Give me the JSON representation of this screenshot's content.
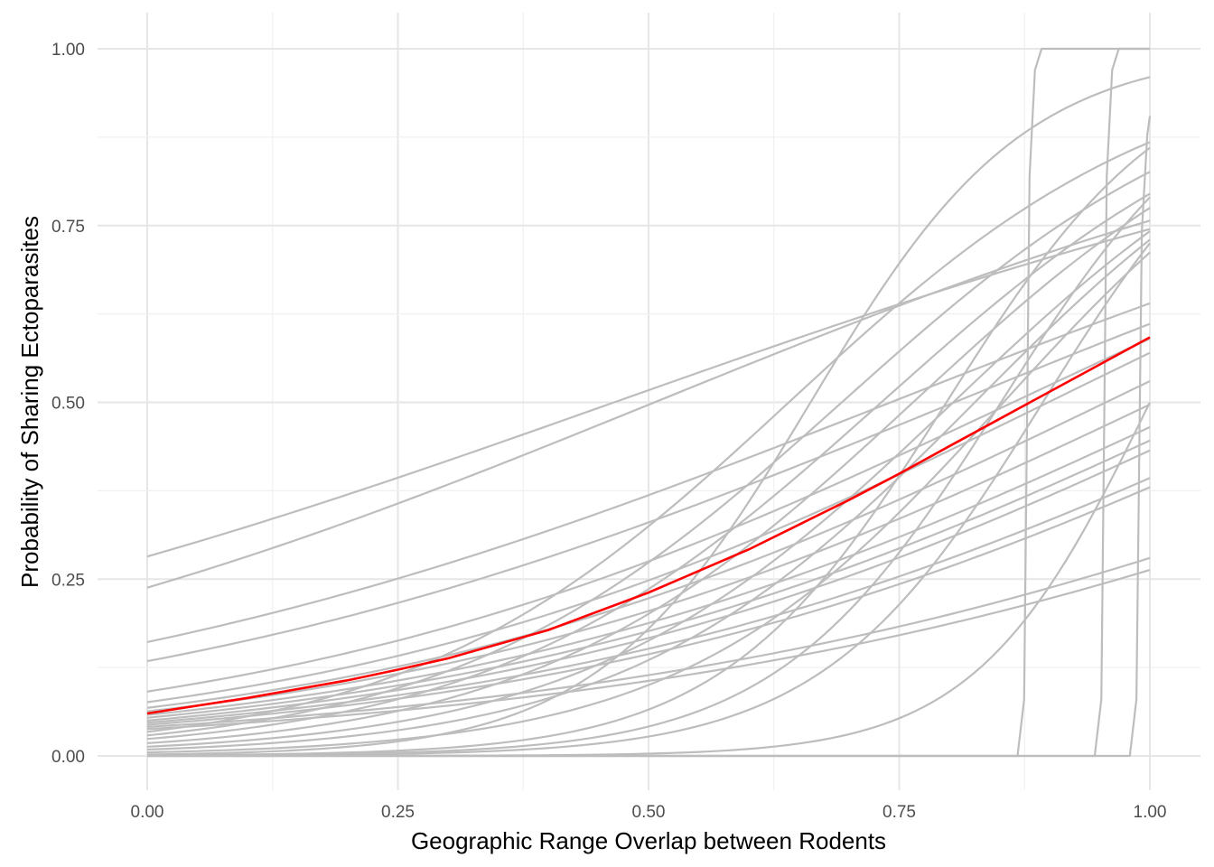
{
  "chart_data": {
    "type": "line",
    "xlabel": "Geographic Range Overlap between Rodents",
    "ylabel": "Probability of Sharing Ectoparasites",
    "xlim": [
      0,
      1
    ],
    "ylim": [
      0,
      1
    ],
    "x_ticks": [
      "0.00",
      "0.25",
      "0.50",
      "0.75",
      "1.00"
    ],
    "y_ticks": [
      "0.00",
      "0.25",
      "0.50",
      "0.75",
      "1.00"
    ],
    "grid": true,
    "colors": {
      "draws": "#bdbdbd",
      "mean": "#ff0000"
    },
    "mean_series": {
      "x": [
        0,
        0.1,
        0.2,
        0.25,
        0.3,
        0.4,
        0.5,
        0.6,
        0.7,
        0.75,
        0.8,
        0.9,
        1.0
      ],
      "y": [
        0.06,
        0.082,
        0.107,
        0.122,
        0.138,
        0.178,
        0.231,
        0.292,
        0.362,
        0.399,
        0.438,
        0.515,
        0.592
      ]
    },
    "posterior_draws": [
      {
        "y0": 0.282,
        "y1": 0.745
      },
      {
        "y0": 0.238,
        "y1": 0.757
      },
      {
        "y0": 0.161,
        "y1": 0.64
      },
      {
        "y0": 0.134,
        "y1": 0.611
      },
      {
        "y0": 0.091,
        "y1": 0.59
      },
      {
        "y0": 0.076,
        "y1": 0.57
      },
      {
        "y0": 0.068,
        "y1": 0.53
      },
      {
        "y0": 0.063,
        "y1": 0.497
      },
      {
        "y0": 0.058,
        "y1": 0.465
      },
      {
        "y0": 0.054,
        "y1": 0.446
      },
      {
        "y0": 0.05,
        "y1": 0.432
      },
      {
        "y0": 0.047,
        "y1": 0.393
      },
      {
        "y0": 0.044,
        "y1": 0.38
      },
      {
        "y0": 0.041,
        "y1": 0.28
      },
      {
        "y0": 0.038,
        "y1": 0.263
      },
      {
        "y0": 0.034,
        "y1": 0.868
      },
      {
        "y0": 0.029,
        "y1": 0.826
      },
      {
        "y0": 0.024,
        "y1": 0.795
      },
      {
        "y0": 0.018,
        "y1": 0.775
      },
      {
        "y0": 0.013,
        "y1": 0.742
      },
      {
        "y0": 0.009,
        "y1": 0.73
      },
      {
        "y0": 0.005,
        "y1": 0.712
      },
      {
        "y0": 0.002,
        "y1": 0.96
      },
      {
        "y0": 0.0008,
        "y1": 0.86
      },
      {
        "y0": 0.0005,
        "y1": 0.79
      },
      {
        "y0": 0.0003,
        "y1": 0.725
      },
      {
        "y0": 1e-05,
        "y1": 0.5
      },
      {
        "y0": 0.0,
        "y1": 0.0,
        "step_x": 0.88,
        "step_y": 1.0
      },
      {
        "y0": 0.0,
        "y1": 0.0,
        "step_x": 0.957,
        "step_y": 1.0
      },
      {
        "y0": 0.0,
        "y1": 0.0,
        "step_x": 0.992,
        "step_y": 0.905
      }
    ]
  }
}
